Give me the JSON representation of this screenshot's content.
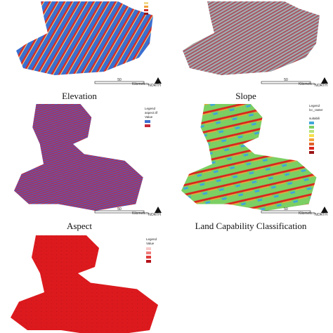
{
  "panels": [
    {
      "title": "Elevation",
      "scale": {
        "value": "50",
        "unit": "Kilometers"
      },
      "north": "NORTH"
    },
    {
      "title": "Slope",
      "scale": {
        "value": "50",
        "unit": "Kilometers"
      },
      "north": "NORTH"
    },
    {
      "title": "Aspect",
      "scale": {
        "value": "50",
        "unit": "Kilometers"
      },
      "north": "NORTH",
      "legend": {
        "title": "Legend",
        "subtitle": "aspect.tif",
        "heading": "Value"
      }
    },
    {
      "title": "Land Capability Classification",
      "scale": {
        "value": "50",
        "unit": "Kilometers"
      },
      "north": "NORTH",
      "legend": {
        "title": "Legend",
        "subtitle": "lcc_raster",
        "heading": "suitabili"
      }
    },
    {
      "legend": {
        "title": "Legend",
        "heading": "Value"
      }
    }
  ]
}
